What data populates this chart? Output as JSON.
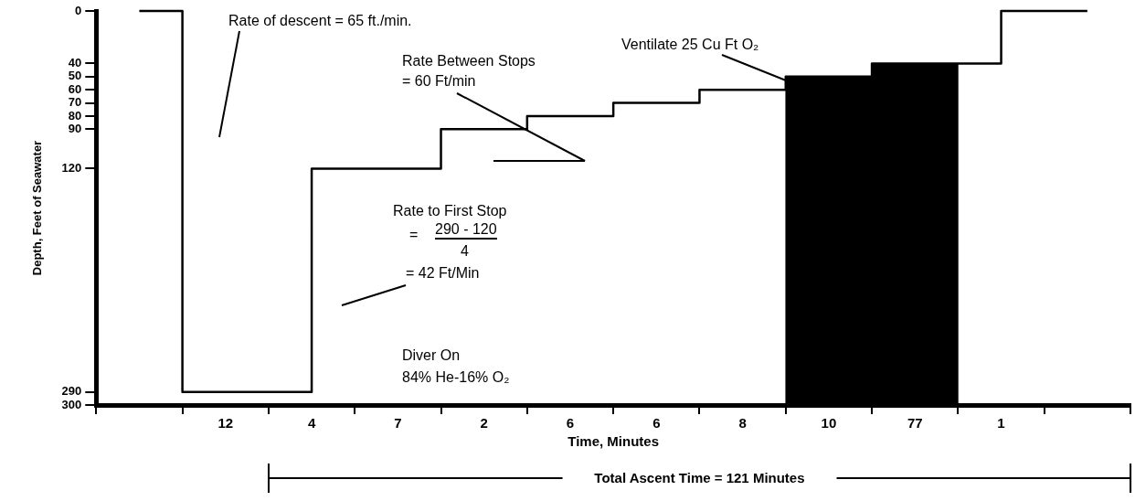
{
  "chart_data": {
    "type": "step",
    "xlabel": "Time, Minutes",
    "ylabel": "Depth, Feet of Seawater",
    "categories": [
      null,
      "12",
      "4",
      "7",
      "2",
      "6",
      "6",
      "8",
      "10",
      "77",
      "1",
      null
    ],
    "ylim": [
      300,
      0
    ],
    "yticks": [
      0,
      40,
      50,
      60,
      70,
      80,
      90,
      120,
      290,
      300
    ],
    "legend": false,
    "grid": false,
    "marker": "none",
    "line_style": "solid",
    "annotations": [
      "Rate of descent = 65 ft./min.",
      "Ventilate 25 Cu Ft O₂",
      "Rate Between Stops",
      "= 60 Ft/min",
      "Rate to First Stop",
      "=",
      "290 - 120",
      "4",
      "= 42 Ft/Min",
      "Diver On",
      "84% He-16% O₂",
      "Total Ascent Time = 121 Minutes"
    ],
    "series": [
      {
        "color": "#000000",
        "values": [
          0,
          290,
          null,
          120,
          90,
          80,
          70,
          60,
          50,
          40,
          null,
          0
        ]
      },
      {
        "type": "bar",
        "color": "#000000",
        "values": [
          null,
          null,
          null,
          null,
          null,
          null,
          null,
          null,
          250,
          260,
          null,
          null
        ],
        "base": [
          null,
          null,
          null,
          null,
          null,
          null,
          null,
          null,
          50,
          40,
          null,
          null
        ]
      }
    ]
  }
}
